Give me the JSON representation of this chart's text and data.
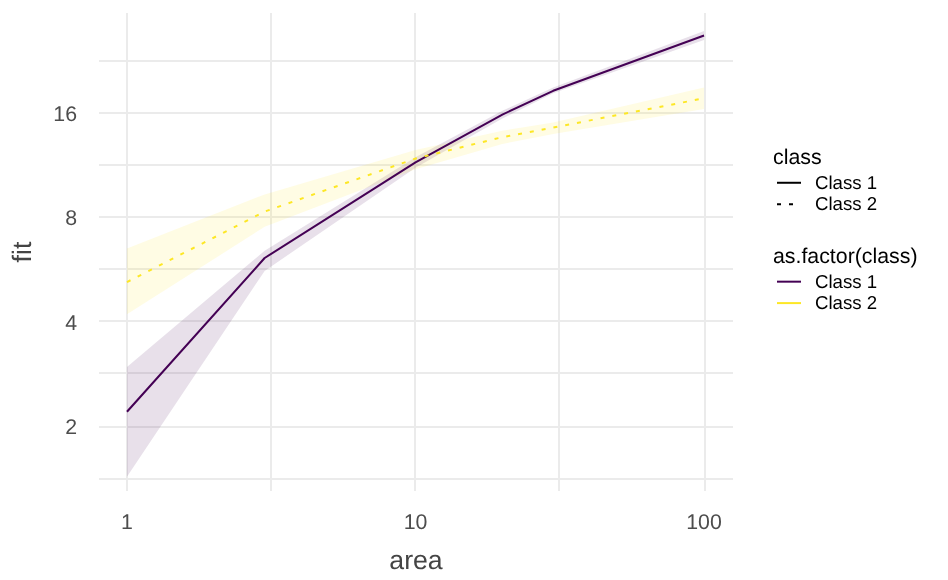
{
  "chart_data": {
    "type": "line",
    "xlabel": "area",
    "ylabel": "fit",
    "legend_title": "class",
    "annotations": [
      "as.factor(class)"
    ],
    "x": [
      1,
      3,
      10,
      20,
      30,
      100
    ],
    "series": [
      {
        "name": "Class 1",
        "color": "#440154",
        "line_style": "solid",
        "values": [
          2.2,
          6.1,
          11.5,
          15.8,
          18.5,
          26.7
        ],
        "lower": [
          1.43,
          5.6,
          11.1,
          15.4,
          18.2,
          25.9
        ],
        "upper": [
          2.96,
          6.4,
          11.9,
          16.2,
          18.9,
          27.5
        ]
      },
      {
        "name": "Class 2",
        "color": "#fde725",
        "line_style": "dotted",
        "values": [
          5.2,
          8.3,
          11.8,
          13.6,
          14.5,
          17.6
        ],
        "lower": [
          4.2,
          7.5,
          11.0,
          13.0,
          13.9,
          16.4
        ],
        "upper": [
          6.5,
          9.3,
          12.5,
          14.2,
          15.0,
          18.9
        ]
      }
    ],
    "log": "xy",
    "xlim": [
      0.8,
      126
    ],
    "ylim": [
      1.3,
      31
    ],
    "xticks": [
      1,
      {
        "value": 3.16,
        "label": null
      },
      10,
      {
        "value": 31.6,
        "label": null
      },
      100
    ],
    "yticks": [
      {
        "value": 1.41,
        "label": null
      },
      2,
      {
        "value": 2.83,
        "label": null
      },
      4,
      {
        "value": 5.66,
        "label": null
      },
      8,
      {
        "value": 11.3,
        "label": null
      },
      16,
      {
        "value": 22.6,
        "label": null
      }
    ],
    "grid": true,
    "legend": "right"
  }
}
